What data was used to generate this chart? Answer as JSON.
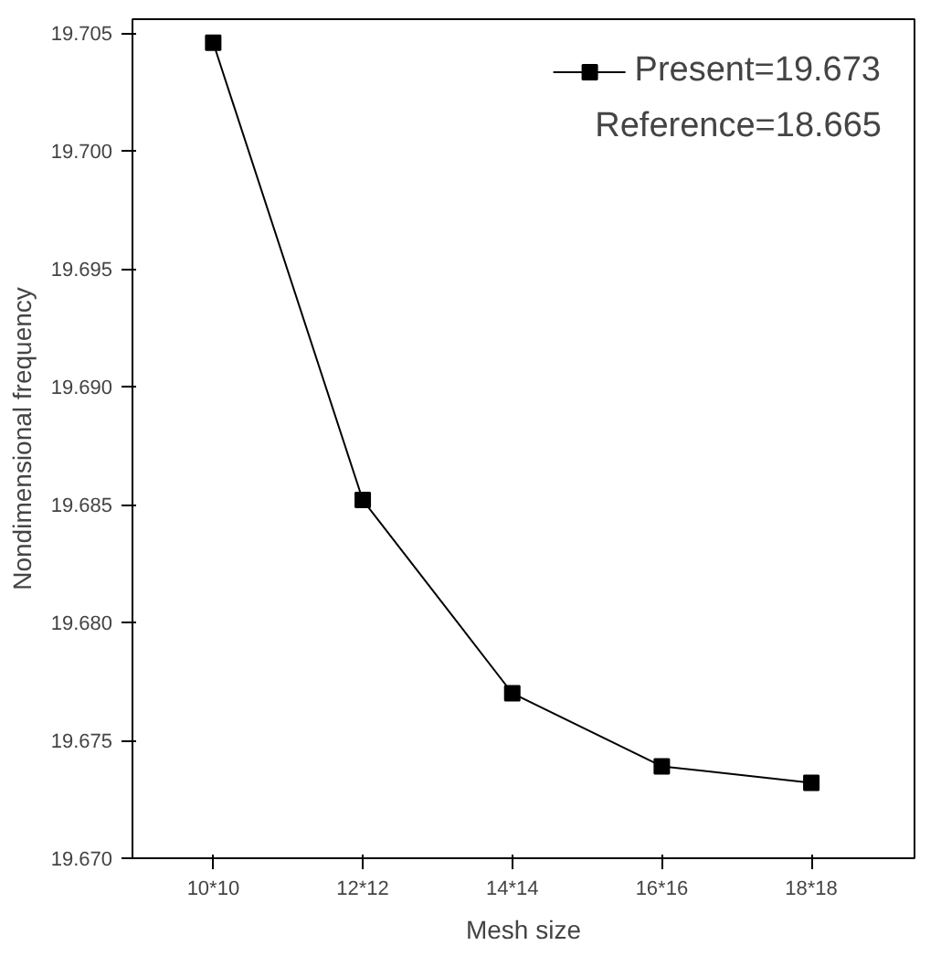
{
  "chart_data": {
    "type": "line",
    "xlabel": "Mesh size",
    "ylabel": "Nondimensional frequency",
    "categories": [
      "10*10",
      "12*12",
      "14*14",
      "16*16",
      "18*18"
    ],
    "series": [
      {
        "name": "Present=19.673",
        "color": "#000000",
        "values": [
          19.7046,
          19.6852,
          19.677,
          19.6739,
          19.6732
        ]
      }
    ],
    "ylim": [
      19.67,
      19.7056
    ],
    "yticks": [
      {
        "value": 19.67,
        "label": "19.670"
      },
      {
        "value": 19.675,
        "label": "19.675"
      },
      {
        "value": 19.68,
        "label": "19.680"
      },
      {
        "value": 19.685,
        "label": "19.685"
      },
      {
        "value": 19.69,
        "label": "19.690"
      },
      {
        "value": 19.695,
        "label": "19.695"
      },
      {
        "value": 19.7,
        "label": "19.700"
      },
      {
        "value": 19.705,
        "label": "19.705"
      }
    ],
    "annotations": [
      "Reference=18.665"
    ],
    "marker": "square",
    "line_style": "solid",
    "grid": false,
    "legend": "top right"
  }
}
